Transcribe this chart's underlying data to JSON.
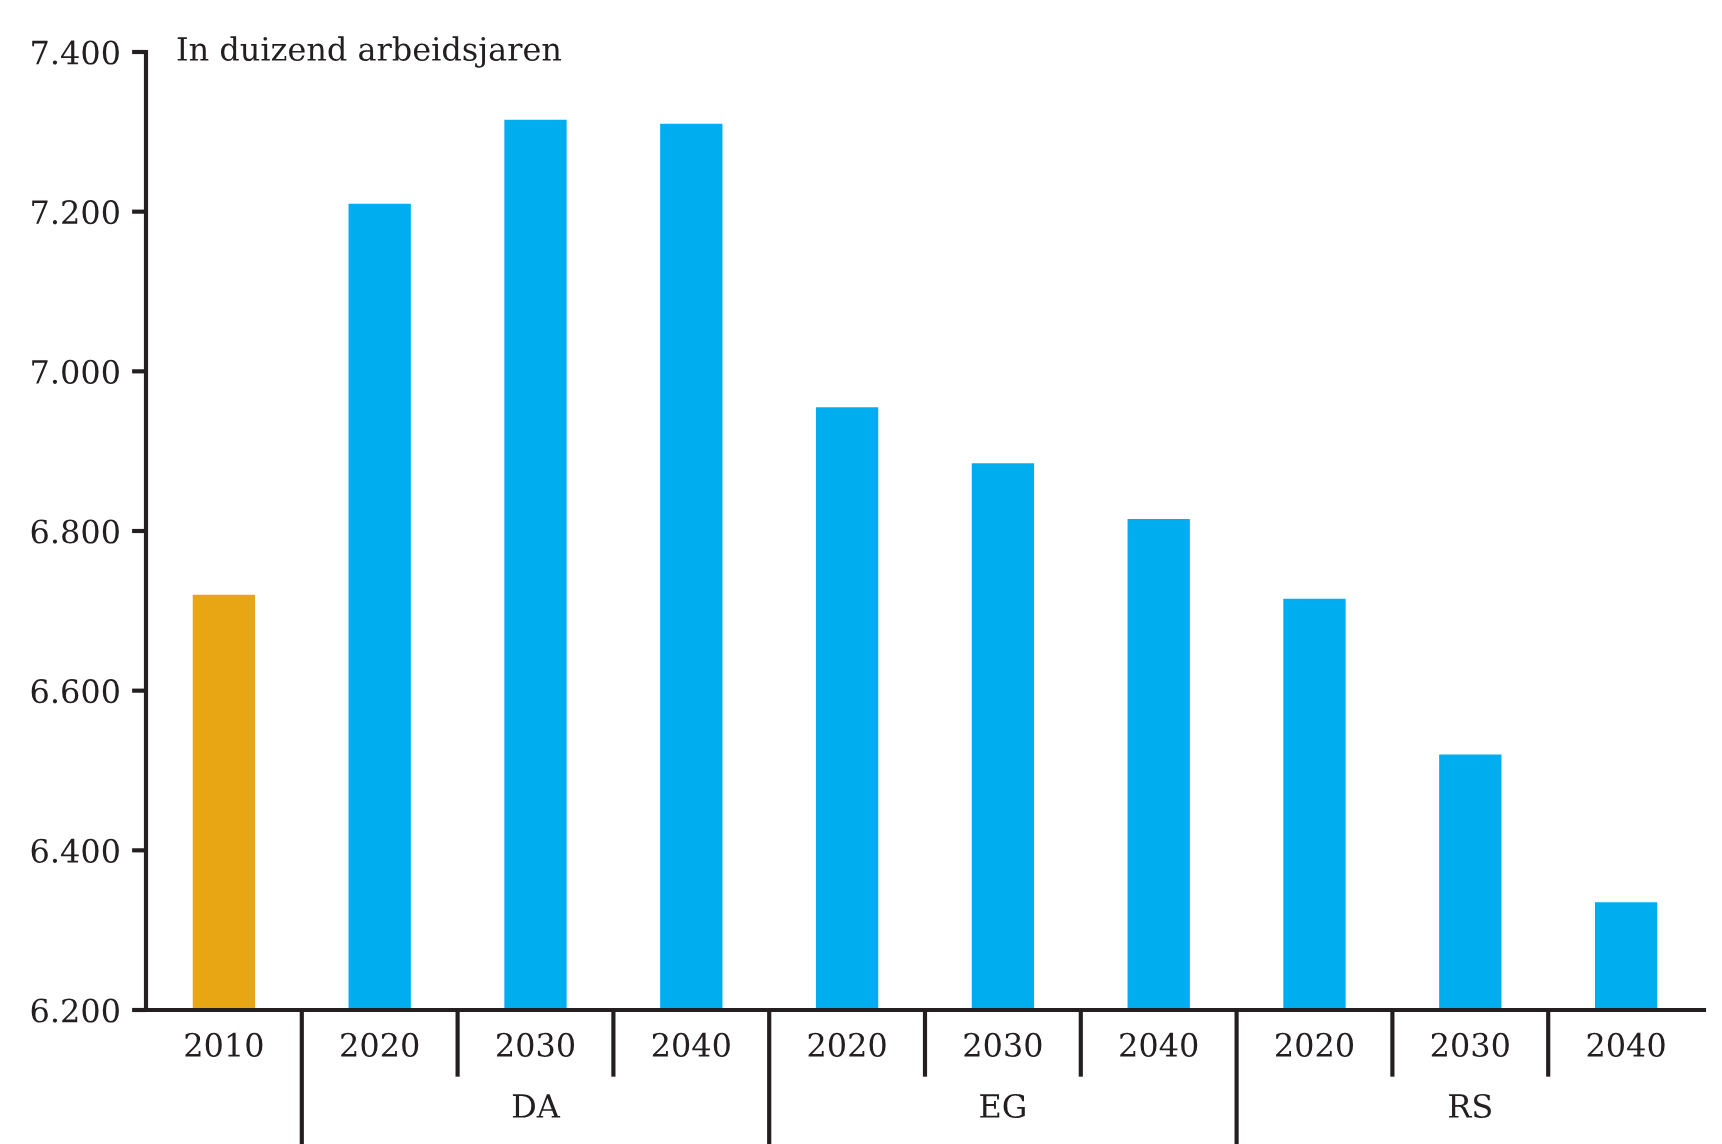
{
  "chart_data": {
    "type": "bar",
    "ylabel": "In duizend arbeidsjaren",
    "categories": [
      "2010",
      "2020",
      "2030",
      "2040",
      "2020",
      "2030",
      "2040",
      "2020",
      "2030",
      "2040"
    ],
    "values": [
      6720,
      7210,
      7315,
      7310,
      6955,
      6885,
      6815,
      6715,
      6520,
      6335
    ],
    "colors": [
      "#e8a514",
      "#00aeef",
      "#00aeef",
      "#00aeef",
      "#00aeef",
      "#00aeef",
      "#00aeef",
      "#00aeef",
      "#00aeef",
      "#00aeef"
    ],
    "ylim": [
      6200,
      7400
    ],
    "yticks": [
      {
        "value": 6200,
        "label": "6.200"
      },
      {
        "value": 6400,
        "label": "6.400"
      },
      {
        "value": 6600,
        "label": "6.600"
      },
      {
        "value": 6800,
        "label": "6.800"
      },
      {
        "value": 7000,
        "label": "7.000"
      },
      {
        "value": 7200,
        "label": "7.200"
      },
      {
        "value": 7400,
        "label": "7.400"
      }
    ],
    "annotations": [
      "DA",
      "EG",
      "RS"
    ],
    "grid": false
  }
}
